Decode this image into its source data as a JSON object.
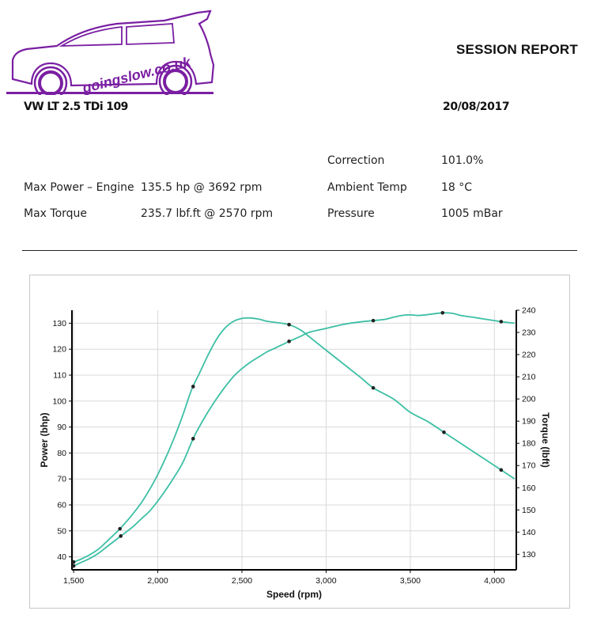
{
  "header": {
    "logo_text": "goingslow.co.uk",
    "report_title": "SESSION REPORT",
    "vehicle": "VW LT 2.5 TDi 109",
    "date": "20/08/2017"
  },
  "stats": {
    "max_power_label": "Max Power – Engine",
    "max_power_value": "135.5 hp @ 3692 rpm",
    "max_torque_label": "Max Torque",
    "max_torque_value": "235.7 lbf.ft @ 2570 rpm",
    "correction_label": "Correction",
    "correction_value": "101.0%",
    "ambient_label": "Ambient Temp",
    "ambient_value": "18 °C",
    "pressure_label": "Pressure",
    "pressure_value": "1005 mBar"
  },
  "colors": {
    "logo_purple": "#7a1fa2",
    "curve": "#3cbfa5",
    "grid": "#d9d9d9"
  },
  "chart_data": {
    "type": "line",
    "xlabel": "Speed (rpm)",
    "ylabel": "Power (bhp)",
    "y2label": "Torque (lbft)",
    "xlim": [
      1490,
      4130
    ],
    "ylim": [
      35,
      135
    ],
    "y2lim": [
      123,
      240
    ],
    "x_ticks": [
      1500,
      2000,
      2500,
      3000,
      3500,
      4000
    ],
    "x_tick_labels": [
      "1,500",
      "2,000",
      "2,500",
      "3,000",
      "3,500",
      "4,000"
    ],
    "y_ticks": [
      40,
      50,
      60,
      70,
      80,
      90,
      100,
      110,
      120,
      130
    ],
    "y2_ticks": [
      130,
      140,
      150,
      160,
      170,
      180,
      190,
      200,
      210,
      220,
      230,
      240
    ],
    "grid": true,
    "series": [
      {
        "axis": "right",
        "x": [
          1500,
          1550,
          1600,
          1650,
          1700,
          1775,
          1850,
          1900,
          1950,
          2000,
          2050,
          2100,
          2150,
          2200,
          2250,
          2300,
          2350,
          2400,
          2450,
          2500,
          2550,
          2600,
          2650,
          2700,
          2780,
          2850,
          2900,
          2950,
          3000,
          3100,
          3200,
          3280,
          3400,
          3500,
          3600,
          3700,
          3800,
          3900,
          4000,
          4050,
          4120
        ],
        "values": [
          126.5,
          128,
          130,
          132.5,
          136,
          141.5,
          148,
          153,
          159,
          166,
          174,
          183,
          193,
          204,
          212,
          220,
          227,
          232,
          235,
          236.3,
          236.5,
          236,
          235,
          234.5,
          233.5,
          231,
          228,
          225,
          222,
          216,
          210,
          205,
          200,
          194,
          190,
          185,
          180,
          175,
          170,
          167.5,
          164
        ]
      },
      {
        "axis": "left",
        "x": [
          1500,
          1550,
          1600,
          1650,
          1700,
          1780,
          1850,
          1900,
          1950,
          2000,
          2050,
          2100,
          2150,
          2210,
          2250,
          2300,
          2350,
          2400,
          2450,
          2500,
          2550,
          2600,
          2650,
          2700,
          2780,
          2850,
          2900,
          3000,
          3100,
          3200,
          3280,
          3350,
          3400,
          3450,
          3500,
          3550,
          3600,
          3692,
          3750,
          3800,
          3900,
          4000,
          4050,
          4120
        ],
        "values": [
          36.5,
          38,
          39.5,
          41.5,
          44,
          48,
          51.5,
          54.5,
          57.5,
          61.5,
          66,
          71,
          76.5,
          85.5,
          90.5,
          96,
          101,
          105.5,
          109.5,
          112.5,
          115,
          117,
          119,
          120.5,
          123,
          125,
          126.5,
          128,
          129.5,
          130.5,
          131,
          131.5,
          132.3,
          133,
          133.2,
          133,
          133.3,
          134,
          133.8,
          133,
          132,
          131,
          130.5,
          130
        ]
      }
    ],
    "markers": {
      "torque_x": [
        1500,
        1775,
        2210,
        2780,
        3280,
        3700,
        4040
      ],
      "power_x": [
        1500,
        1780,
        2210,
        2780,
        3280,
        3692,
        4040
      ]
    }
  }
}
